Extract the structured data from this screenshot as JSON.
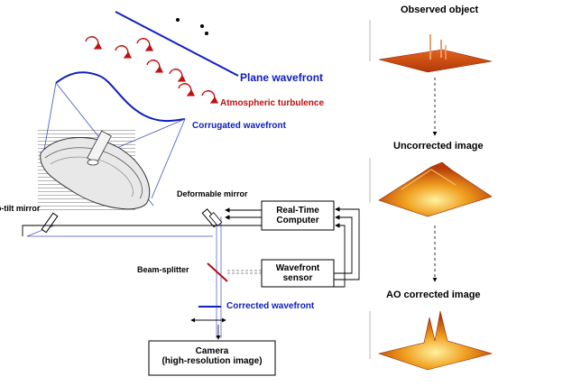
{
  "colors": {
    "blue": "#1020c0",
    "red": "#c01010",
    "black": "#000000",
    "orange": "#e06010"
  },
  "labels": {
    "plane_wavefront": "Plane wavefront",
    "atmospheric_turbulence": "Atmospheric turbulence",
    "corrugated_wavefront": "Corrugated wavefront",
    "tip_tilt_mirror": "Tip-tilt mirror",
    "deformable_mirror": "Deformable mirror",
    "beam_splitter": "Beam-splitter",
    "corrected_wavefront": "Corrected wavefront"
  },
  "boxes": {
    "rtc_line1": "Real-Time",
    "rtc_line2": "Computer",
    "wfs_line1": "Wavefront",
    "wfs_line2": "sensor",
    "camera_line1": "Camera",
    "camera_line2": "(high-resolution image)"
  },
  "panels": {
    "observed": "Observed object",
    "uncorrected": "Uncorrected image",
    "ao_corrected": "AO corrected image"
  }
}
